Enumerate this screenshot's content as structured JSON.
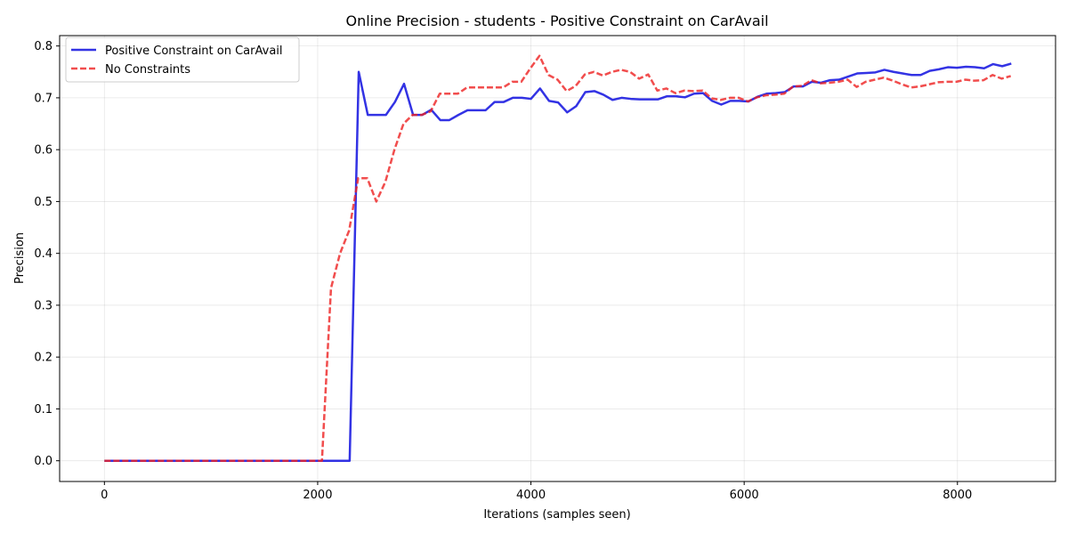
{
  "chart_data": {
    "type": "line",
    "title": "Online Precision - students - Positive Constraint on CarAvail",
    "xlabel": "Iterations (samples seen)",
    "ylabel": "Precision",
    "xlim": [
      -420,
      8920
    ],
    "ylim": [
      -0.04,
      0.82
    ],
    "x_ticks": [
      0,
      2000,
      4000,
      6000,
      8000
    ],
    "y_ticks": [
      0.0,
      0.1,
      0.2,
      0.3,
      0.4,
      0.5,
      0.6,
      0.7,
      0.8
    ],
    "x_tick_labels": [
      "0",
      "2000",
      "4000",
      "6000",
      "8000"
    ],
    "y_tick_labels": [
      "0.0",
      "0.1",
      "0.2",
      "0.3",
      "0.4",
      "0.5",
      "0.6",
      "0.7",
      "0.8"
    ],
    "grid": true,
    "legend_position": "top-left",
    "series": [
      {
        "name": "Positive Constraint on CarAvail",
        "color": "#0000dd",
        "style": "solid",
        "x": [
          0,
          2300,
          2385,
          2470,
          2555,
          2640,
          2725,
          2810,
          2895,
          2980,
          3065,
          3150,
          3235,
          3320,
          3405,
          3490,
          3575,
          3660,
          3745,
          3830,
          3915,
          4000,
          4085,
          4170,
          4255,
          4340,
          4425,
          4510,
          4595,
          4680,
          4765,
          4850,
          4935,
          5020,
          5105,
          5190,
          5275,
          5360,
          5445,
          5530,
          5615,
          5700,
          5785,
          5870,
          5955,
          6040,
          6125,
          6210,
          6295,
          6380,
          6465,
          6550,
          6635,
          6720,
          6805,
          6890,
          6975,
          7060,
          7145,
          7230,
          7315,
          7400,
          7485,
          7570,
          7655,
          7740,
          7825,
          7910,
          7995,
          8080,
          8165,
          8250,
          8335,
          8420,
          8505
        ],
        "y": [
          0.0,
          0.0,
          0.75,
          0.667,
          0.667,
          0.667,
          0.692,
          0.727,
          0.667,
          0.667,
          0.677,
          0.657,
          0.657,
          0.667,
          0.676,
          0.676,
          0.676,
          0.692,
          0.692,
          0.7,
          0.7,
          0.698,
          0.718,
          0.694,
          0.691,
          0.672,
          0.684,
          0.711,
          0.713,
          0.706,
          0.696,
          0.7,
          0.698,
          0.697,
          0.697,
          0.697,
          0.703,
          0.703,
          0.701,
          0.708,
          0.709,
          0.694,
          0.687,
          0.694,
          0.694,
          0.693,
          0.702,
          0.708,
          0.709,
          0.711,
          0.722,
          0.722,
          0.731,
          0.729,
          0.734,
          0.735,
          0.741,
          0.747,
          0.748,
          0.749,
          0.754,
          0.75,
          0.747,
          0.744,
          0.744,
          0.752,
          0.755,
          0.759,
          0.758,
          0.76,
          0.759,
          0.757,
          0.765,
          0.761,
          0.766
        ]
      },
      {
        "name": "No Constraints",
        "color": "#ee2020",
        "style": "dashed",
        "x": [
          0,
          2040,
          2125,
          2210,
          2295,
          2380,
          2465,
          2550,
          2635,
          2720,
          2805,
          2890,
          2975,
          3060,
          3145,
          3230,
          3315,
          3400,
          3485,
          3570,
          3655,
          3740,
          3825,
          3910,
          3995,
          4080,
          4165,
          4250,
          4335,
          4420,
          4505,
          4590,
          4675,
          4760,
          4845,
          4930,
          5015,
          5100,
          5185,
          5270,
          5355,
          5440,
          5525,
          5610,
          5695,
          5780,
          5865,
          5950,
          6035,
          6120,
          6205,
          6290,
          6375,
          6460,
          6545,
          6630,
          6715,
          6800,
          6885,
          6970,
          7055,
          7140,
          7225,
          7310,
          7395,
          7480,
          7565,
          7650,
          7735,
          7820,
          7905,
          7990,
          8075,
          8160,
          8245,
          8330,
          8415,
          8500
        ],
        "y": [
          0.0,
          0.0,
          0.333,
          0.4,
          0.444,
          0.545,
          0.545,
          0.5,
          0.538,
          0.6,
          0.65,
          0.667,
          0.667,
          0.674,
          0.708,
          0.708,
          0.708,
          0.72,
          0.72,
          0.72,
          0.72,
          0.72,
          0.731,
          0.731,
          0.757,
          0.781,
          0.744,
          0.735,
          0.713,
          0.723,
          0.745,
          0.75,
          0.743,
          0.75,
          0.754,
          0.75,
          0.737,
          0.745,
          0.714,
          0.718,
          0.709,
          0.714,
          0.713,
          0.714,
          0.699,
          0.696,
          0.7,
          0.7,
          0.693,
          0.701,
          0.705,
          0.706,
          0.708,
          0.722,
          0.723,
          0.734,
          0.728,
          0.729,
          0.731,
          0.735,
          0.721,
          0.731,
          0.735,
          0.739,
          0.733,
          0.726,
          0.72,
          0.722,
          0.726,
          0.73,
          0.731,
          0.731,
          0.735,
          0.733,
          0.734,
          0.744,
          0.737,
          0.742
        ]
      }
    ]
  }
}
